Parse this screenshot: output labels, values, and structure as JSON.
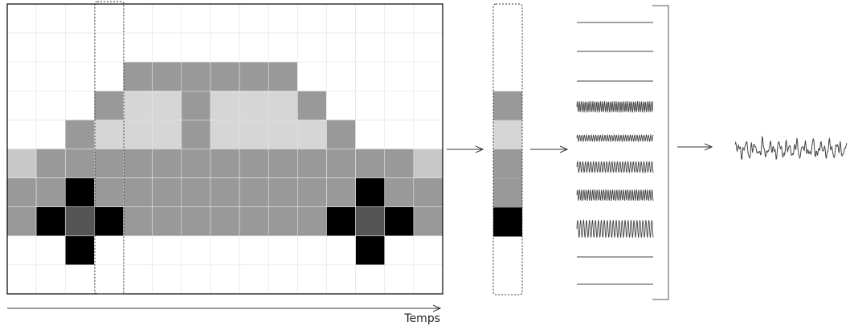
{
  "axis_label": "Temps"
}
